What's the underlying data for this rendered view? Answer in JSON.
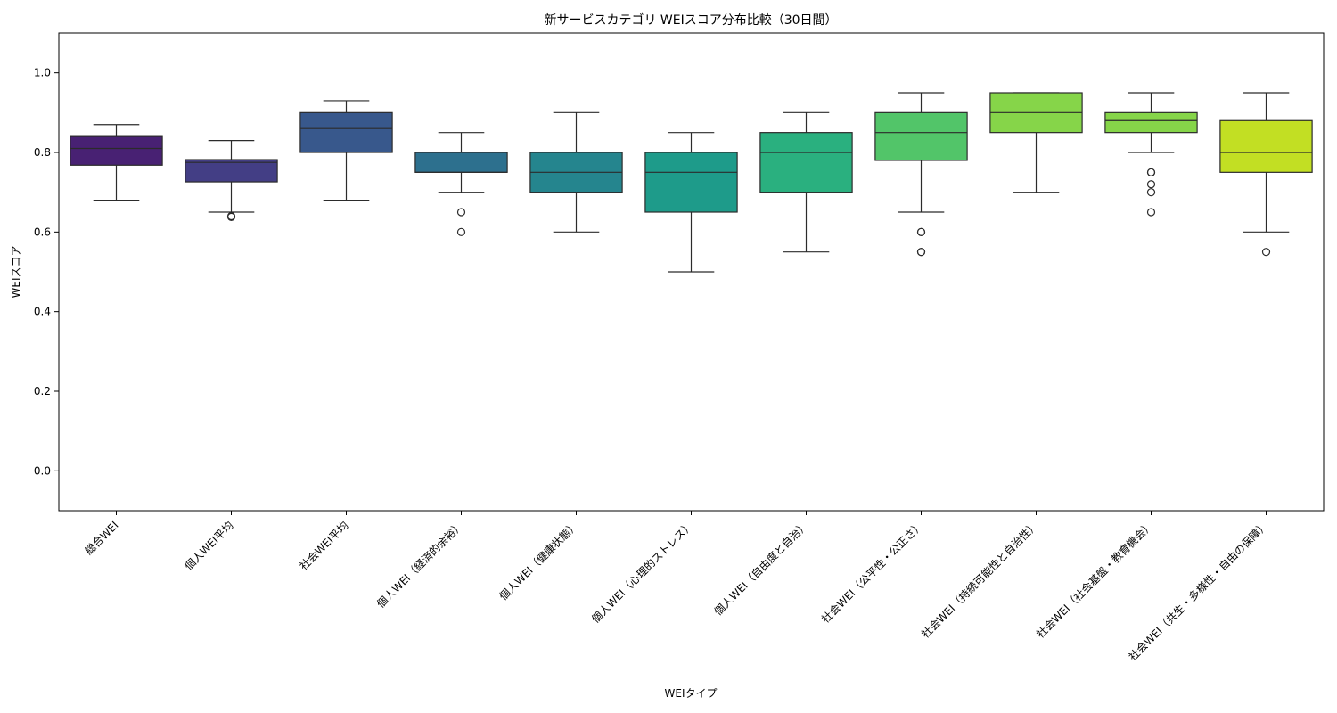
{
  "chart_data": {
    "type": "box",
    "title": "新サービスカテゴリ WEIスコア分布比較（30日間）",
    "xlabel": "WEIタイプ",
    "ylabel": "WEIスコア",
    "ylim": [
      -0.1,
      1.1
    ],
    "yticks": [
      "0.0",
      "0.2",
      "0.4",
      "0.6",
      "0.8",
      "1.0"
    ],
    "grid": false,
    "legend": "none",
    "categories": [
      "総合WEI",
      "個人WEI平均",
      "社会WEI平均",
      "個人WEI（経済的余裕）",
      "個人WEI（健康状態）",
      "個人WEI（心理的ストレス）",
      "個人WEI（自由度と自治）",
      "社会WEI（公平性・公正さ）",
      "社会WEI（持続可能性と自治性）",
      "社会WEI（社会基盤・教育機会）",
      "社会WEI（共生・多様性・自由の保障）"
    ],
    "boxes": [
      {
        "whisker_low": 0.68,
        "q1": 0.768,
        "median": 0.81,
        "q3": 0.84,
        "whisker_high": 0.87,
        "outliers": [],
        "color": "#482173"
      },
      {
        "whisker_low": 0.65,
        "q1": 0.726,
        "median": 0.775,
        "q3": 0.782,
        "whisker_high": 0.83,
        "outliers": [
          0.638,
          0.64
        ],
        "color": "#433e85"
      },
      {
        "whisker_low": 0.68,
        "q1": 0.8,
        "median": 0.86,
        "q3": 0.9,
        "whisker_high": 0.93,
        "outliers": [],
        "color": "#38588c"
      },
      {
        "whisker_low": 0.7,
        "q1": 0.75,
        "median": 0.75,
        "q3": 0.8,
        "whisker_high": 0.85,
        "outliers": [
          0.65,
          0.6
        ],
        "color": "#2d708e"
      },
      {
        "whisker_low": 0.6,
        "q1": 0.7,
        "median": 0.75,
        "q3": 0.8,
        "whisker_high": 0.9,
        "outliers": [],
        "color": "#25858e"
      },
      {
        "whisker_low": 0.5,
        "q1": 0.65,
        "median": 0.75,
        "q3": 0.8,
        "whisker_high": 0.85,
        "outliers": [],
        "color": "#1e9b8a"
      },
      {
        "whisker_low": 0.55,
        "q1": 0.7,
        "median": 0.8,
        "q3": 0.85,
        "whisker_high": 0.9,
        "outliers": [],
        "color": "#2ab07f"
      },
      {
        "whisker_low": 0.65,
        "q1": 0.78,
        "median": 0.85,
        "q3": 0.9,
        "whisker_high": 0.95,
        "outliers": [
          0.6,
          0.6,
          0.55,
          0.55
        ],
        "color": "#52c569"
      },
      {
        "whisker_low": 0.7,
        "q1": 0.85,
        "median": 0.9,
        "q3": 0.95,
        "whisker_high": 0.95,
        "outliers": [],
        "color": "#86d549"
      },
      {
        "whisker_low": 0.8,
        "q1": 0.85,
        "median": 0.88,
        "q3": 0.9,
        "whisker_high": 0.95,
        "outliers": [
          0.75,
          0.75,
          0.72,
          0.7,
          0.65
        ],
        "color": "#86d549"
      },
      {
        "whisker_low": 0.6,
        "q1": 0.75,
        "median": 0.8,
        "q3": 0.88,
        "whisker_high": 0.95,
        "outliers": [
          0.55
        ],
        "color": "#c2df23"
      }
    ]
  }
}
